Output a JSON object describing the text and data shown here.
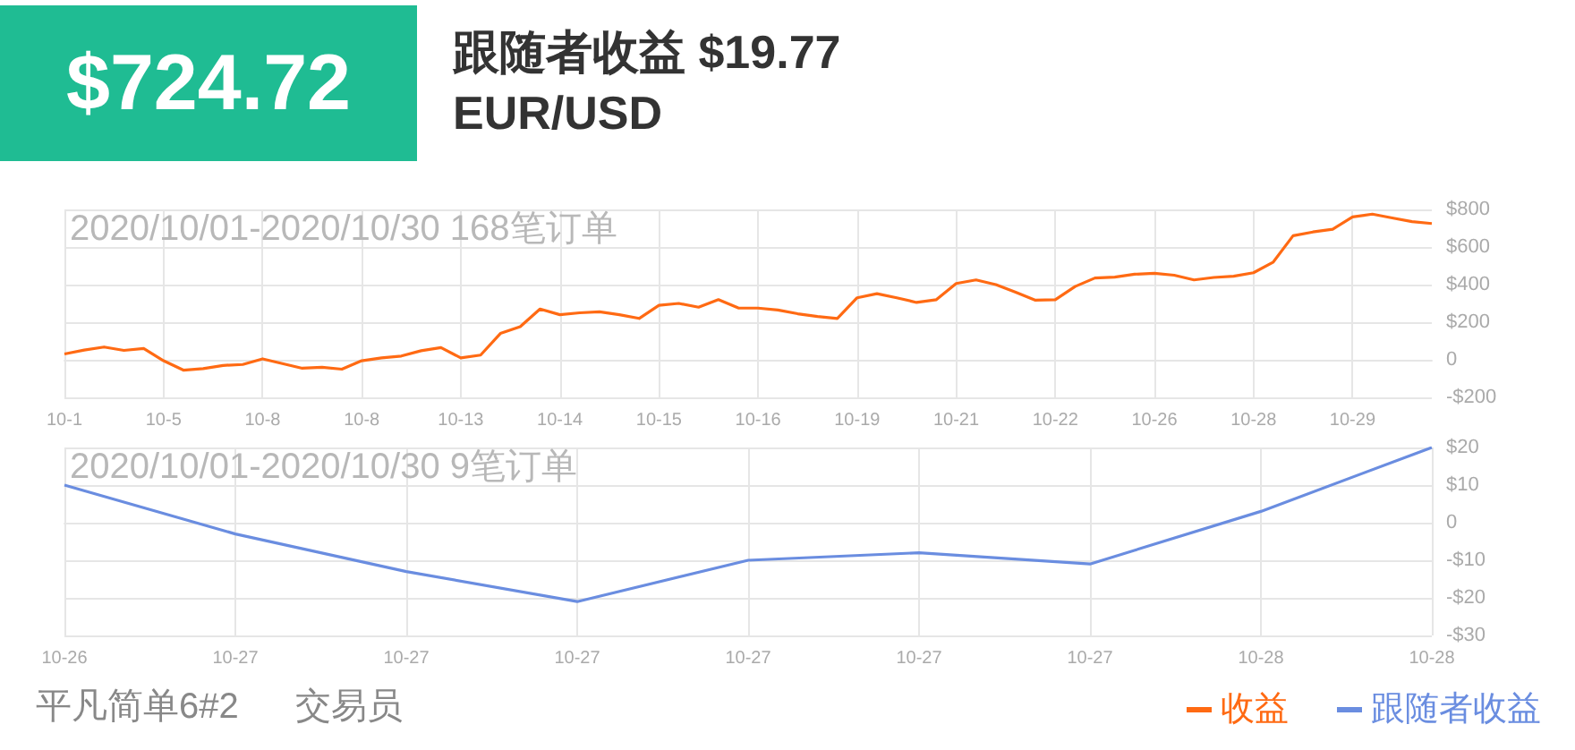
{
  "chart_data": [
    {
      "type": "line",
      "title": "2020/10/01-2020/10/30 168笔订单",
      "annotations": [
        "$724.72",
        "跟随者收益 $19.77",
        "EUR/USD",
        "平凡简单6#2",
        "交易员"
      ],
      "categories": [
        "10-1",
        null,
        null,
        null,
        null,
        "10-5",
        null,
        null,
        null,
        null,
        "10-8",
        null,
        null,
        null,
        null,
        "10-8",
        null,
        null,
        null,
        null,
        "10-13",
        null,
        null,
        null,
        null,
        "10-14",
        null,
        null,
        null,
        null,
        "10-15",
        null,
        null,
        null,
        null,
        "10-16",
        null,
        null,
        null,
        null,
        "10-19",
        null,
        null,
        null,
        null,
        "10-21",
        null,
        null,
        null,
        null,
        "10-22",
        null,
        null,
        null,
        null,
        "10-26",
        null,
        null,
        null,
        null,
        "10-28",
        null,
        null,
        null,
        null,
        "10-29",
        null,
        null,
        null,
        null
      ],
      "series": [
        {
          "name": "收益",
          "color": "#ff6a13",
          "values": [
            31,
            52,
            68,
            50,
            60,
            -5,
            -55,
            -47,
            -30,
            -25,
            5,
            -20,
            -45,
            -40,
            -50,
            -5,
            10,
            20,
            48,
            65,
            10,
            25,
            140,
            176,
            270,
            240,
            250,
            255,
            240,
            220,
            290,
            300,
            280,
            320,
            276,
            275,
            265,
            245,
            230,
            220,
            330,
            352,
            330,
            305,
            320,
            406,
            425,
            400,
            360,
            317,
            320,
            390,
            435,
            440,
            455,
            460,
            450,
            425,
            438,
            445,
            463,
            520,
            660,
            680,
            695,
            760,
            775,
            755,
            735,
            725
          ]
        }
      ],
      "ylim": [
        -200,
        800
      ],
      "yticks": [
        {
          "value": -200,
          "label": "-$200"
        },
        0,
        {
          "value": 200,
          "label": "$200"
        },
        {
          "value": 400,
          "label": "$400"
        },
        {
          "value": 600,
          "label": "$600"
        },
        {
          "value": 800,
          "label": "$800"
        }
      ],
      "grid": true,
      "legend": "bottom right"
    },
    {
      "type": "line",
      "title": "2020/10/01-2020/10/30 9笔订单",
      "categories": [
        "10-26",
        "10-27",
        "10-27",
        "10-27",
        "10-27",
        "10-27",
        "10-27",
        "10-28",
        "10-28"
      ],
      "series": [
        {
          "name": "跟随者收益",
          "color": "#6a8de0",
          "values": [
            10,
            -3,
            -13,
            -21,
            -10,
            -8,
            -11,
            3,
            20
          ]
        }
      ],
      "ylim": [
        -30,
        20
      ],
      "yticks": [
        {
          "value": -30,
          "label": "-$30"
        },
        {
          "value": -20,
          "label": "-$20"
        },
        {
          "value": -10,
          "label": "-$10"
        },
        0,
        {
          "value": 10,
          "label": "$10"
        },
        {
          "value": 20,
          "label": "$20"
        }
      ],
      "grid": true,
      "legend": "bottom right"
    }
  ]
}
